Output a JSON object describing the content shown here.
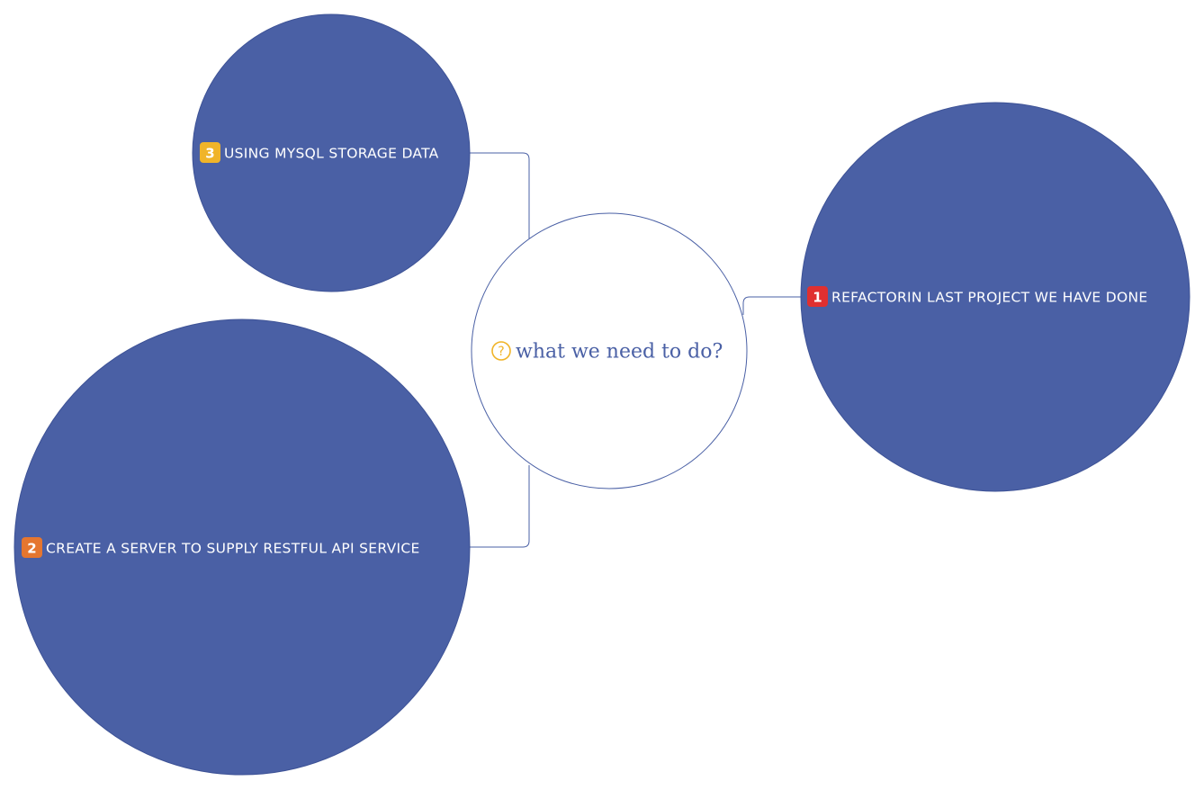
{
  "central_topic": {
    "label": "what we need to do?",
    "icon": "question-circle-icon"
  },
  "topics": [
    {
      "priority": "1",
      "label": "REFACTORIN LAST PROJECT WE HAVE DONE",
      "badge_color": "#e03030"
    },
    {
      "priority": "2",
      "label": "CREATE A SERVER TO SUPPLY RESTFUL API SERVICE",
      "badge_color": "#e5762f"
    },
    {
      "priority": "3",
      "label": "USING MYSQL STORAGE DATA",
      "badge_color": "#f0b429"
    }
  ],
  "colors": {
    "topic_fill": "#4a60a5",
    "connector": "#4a60a5",
    "center_fill": "#ffffff",
    "center_text": "#4a60a5"
  }
}
